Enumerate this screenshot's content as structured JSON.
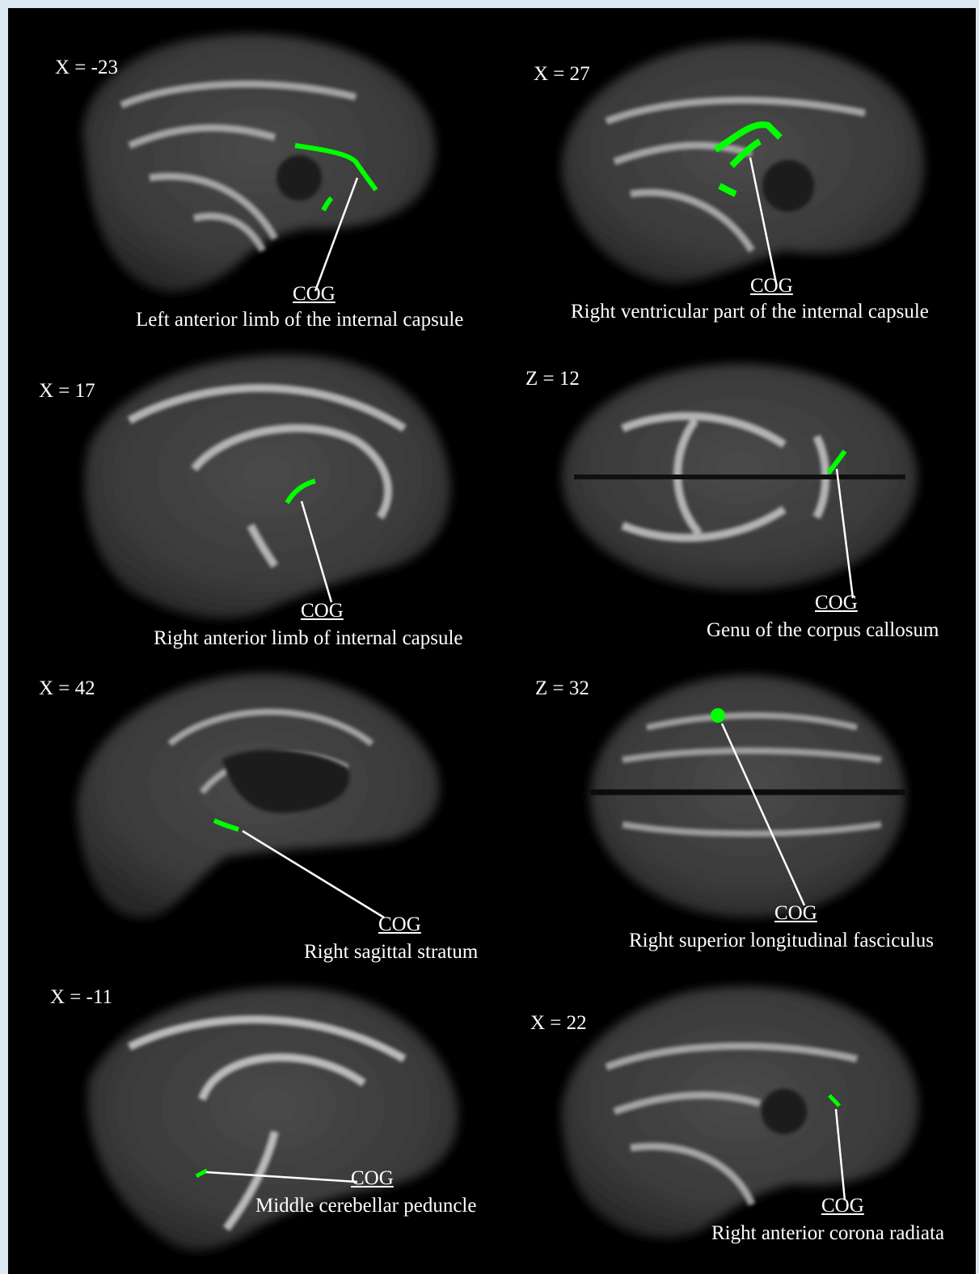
{
  "figure": {
    "overlay_color": "#00ff00",
    "panels": [
      {
        "id": "p1",
        "slice": "X = -23",
        "cog": "COG",
        "caption": "Left anterior limb of the internal capsule",
        "view": "sagittal"
      },
      {
        "id": "p2",
        "slice": "X = 27",
        "cog": "COG",
        "caption": "Right ventricular part of the internal capsule",
        "view": "sagittal"
      },
      {
        "id": "p3",
        "slice": "X = 17",
        "cog": "COG",
        "caption": "Right anterior limb of internal capsule",
        "view": "sagittal"
      },
      {
        "id": "p4",
        "slice": "Z = 12",
        "cog": "COG",
        "caption": "Genu of the corpus callosum",
        "view": "axial"
      },
      {
        "id": "p5",
        "slice": "X = 42",
        "cog": "COG",
        "caption": "Right sagittal stratum",
        "view": "sagittal"
      },
      {
        "id": "p6",
        "slice": "Z = 32",
        "cog": "COG",
        "caption": "Right superior longitudinal fasciculus",
        "view": "axial"
      },
      {
        "id": "p7",
        "slice": "X = -11",
        "cog": "COG",
        "caption": "Middle cerebellar peduncle",
        "view": "sagittal"
      },
      {
        "id": "p8",
        "slice": "X = 22",
        "cog": "COG",
        "caption": "Right anterior corona radiata",
        "view": "sagittal"
      }
    ]
  }
}
